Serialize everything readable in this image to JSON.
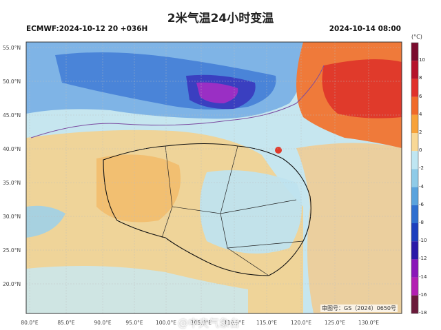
{
  "title": "2米气温24小时变温",
  "model_run": "ECMWF:2024-10-12 20 +036H",
  "valid_time": "2024-10-14 08:00",
  "colorbar": {
    "unit": "(°C)",
    "levels": [
      "10",
      "8",
      "6",
      "4",
      "2",
      "0",
      "-2",
      "-4",
      "-6",
      "-8",
      "-10",
      "-12",
      "-14",
      "-16",
      "-18"
    ],
    "colors": [
      "#7a0c2e",
      "#b5132b",
      "#e0312b",
      "#f06a2a",
      "#f7a23a",
      "#f8d896",
      "#bfe6f2",
      "#8fcbe8",
      "#5aa3dd",
      "#2f6fd0",
      "#1d3fbe",
      "#2b1aa8",
      "#8a17b8",
      "#b31fb2",
      "#6a1a3a"
    ]
  },
  "lat_labels": [
    "55.0°N",
    "50.0°N",
    "45.0°N",
    "40.0°N",
    "35.0°N",
    "30.0°N",
    "25.0°N",
    "20.0°N"
  ],
  "lon_labels": [
    "80.0°E",
    "85.0°E",
    "90.0°E",
    "95.0°E",
    "100.0°E",
    "105.0°E",
    "110.0°E",
    "115.0°E",
    "120.0°E",
    "125.0°E",
    "130.0°E"
  ],
  "review_number": "审图号：GS（2024）0650号",
  "watermark": "@中央气象台"
}
